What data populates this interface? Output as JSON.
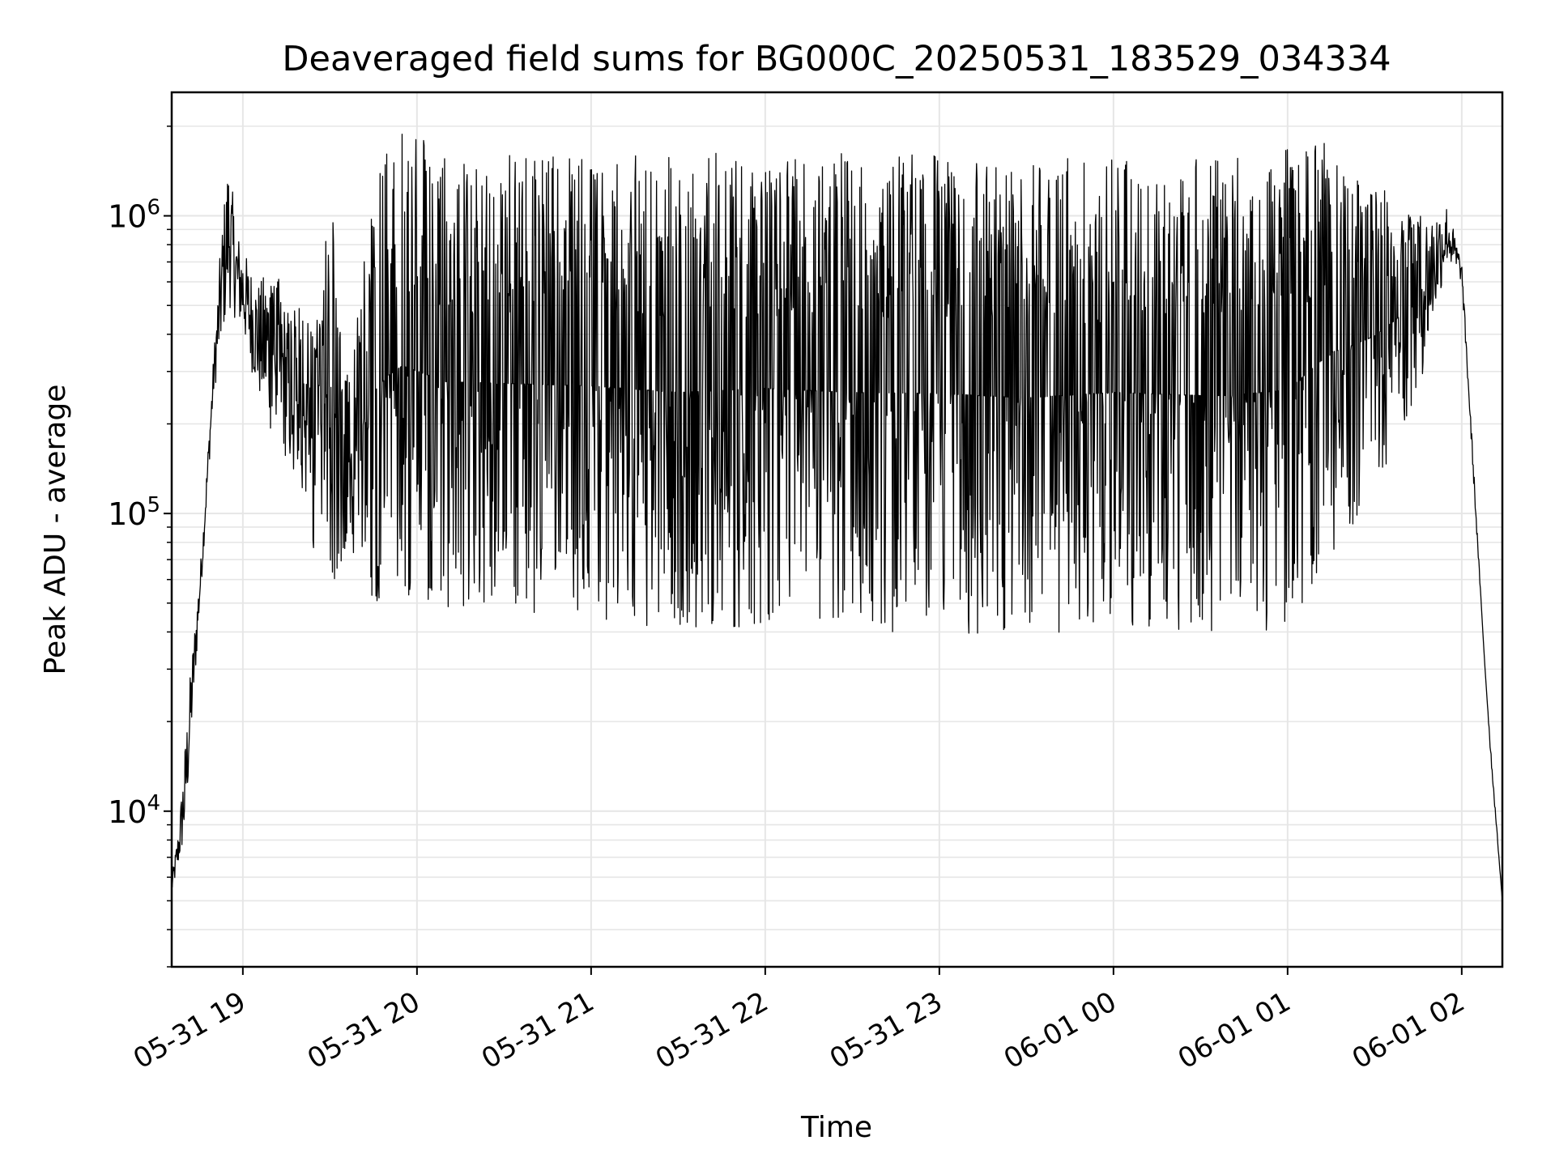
{
  "chart_data": {
    "type": "line",
    "title": "Deaveraged field sums for BG000C_20250531_183529_034334",
    "xlabel": "Time",
    "ylabel": "Peak ADU - average",
    "yscale": "log",
    "ylim": [
      3000,
      2600000
    ],
    "xlim": [
      "2025-05-31 18:35:29",
      "2025-06-01 02:14:00"
    ],
    "grid": true,
    "x_ticks": [
      {
        "time": "2025-05-31 19:00",
        "label": "05-31 19"
      },
      {
        "time": "2025-05-31 20:00",
        "label": "05-31 20"
      },
      {
        "time": "2025-05-31 21:00",
        "label": "05-31 21"
      },
      {
        "time": "2025-05-31 22:00",
        "label": "05-31 22"
      },
      {
        "time": "2025-05-31 23:00",
        "label": "05-31 23"
      },
      {
        "time": "2025-06-01 00:00",
        "label": "06-01 00"
      },
      {
        "time": "2025-06-01 01:00",
        "label": "06-01 01"
      },
      {
        "time": "2025-06-01 02:00",
        "label": "06-01 02"
      }
    ],
    "y_ticks": [
      {
        "value": 10000,
        "base": "10",
        "exp": "4"
      },
      {
        "value": 100000,
        "base": "10",
        "exp": "5"
      },
      {
        "value": 1000000,
        "base": "10",
        "exp": "6"
      }
    ],
    "line_color": "#000000",
    "series": [
      {
        "envelope": {
          "upper": [
            [
              "2025-05-31 18:35",
              5500
            ],
            [
              "2025-05-31 18:38",
              9000
            ],
            [
              "2025-05-31 18:42",
              30000
            ],
            [
              "2025-05-31 18:46",
              80000
            ],
            [
              "2025-05-31 18:50",
              350000
            ],
            [
              "2025-05-31 18:53",
              1000000
            ],
            [
              "2025-05-31 18:55",
              1600000
            ],
            [
              "2025-05-31 18:58",
              900000
            ],
            [
              "2025-05-31 19:02",
              700000
            ],
            [
              "2025-05-31 19:06",
              600000
            ],
            [
              "2025-05-31 19:10",
              750000
            ],
            [
              "2025-05-31 19:15",
              500000
            ],
            [
              "2025-05-31 19:20",
              500000
            ],
            [
              "2025-05-31 19:25",
              400000
            ],
            [
              "2025-05-31 19:30",
              1300000
            ],
            [
              "2025-05-31 19:35",
              300000
            ],
            [
              "2025-05-31 19:40",
              600000
            ],
            [
              "2025-05-31 19:45",
              1300000
            ],
            [
              "2025-05-31 19:50",
              1700000
            ],
            [
              "2025-05-31 19:55",
              2000000
            ],
            [
              "2025-05-31 20:10",
              1600000
            ],
            [
              "2025-05-31 21:00",
              1600000
            ],
            [
              "2025-05-31 22:00",
              1650000
            ],
            [
              "2025-05-31 23:00",
              1600000
            ],
            [
              "2025-06-01 00:00",
              1550000
            ],
            [
              "2025-06-01 00:40",
              1550000
            ],
            [
              "2025-06-01 01:15",
              1800000
            ],
            [
              "2025-06-01 01:30",
              1300000
            ],
            [
              "2025-06-01 01:45",
              1050000
            ],
            [
              "2025-06-01 01:55",
              1100000
            ],
            [
              "2025-06-01 02:00",
              700000
            ],
            [
              "2025-06-01 02:04",
              150000
            ],
            [
              "2025-06-01 02:08",
              30000
            ],
            [
              "2025-06-01 02:12",
              9000
            ],
            [
              "2025-06-01 02:14",
              5000
            ]
          ],
          "lower": [
            [
              "2025-05-31 18:35",
              5000
            ],
            [
              "2025-05-31 18:40",
              8000
            ],
            [
              "2025-05-31 18:45",
              45000
            ],
            [
              "2025-05-31 18:50",
              250000
            ],
            [
              "2025-05-31 18:55",
              500000
            ],
            [
              "2025-05-31 19:00",
              400000
            ],
            [
              "2025-05-31 19:05",
              250000
            ],
            [
              "2025-05-31 19:10",
              180000
            ],
            [
              "2025-05-31 19:15",
              150000
            ],
            [
              "2025-05-31 19:20",
              100000
            ],
            [
              "2025-05-31 19:25",
              70000
            ],
            [
              "2025-05-31 19:30",
              60000
            ],
            [
              "2025-05-31 19:40",
              60000
            ],
            [
              "2025-05-31 19:45",
              50000
            ],
            [
              "2025-05-31 20:10",
              48000
            ],
            [
              "2025-05-31 21:00",
              45000
            ],
            [
              "2025-05-31 21:30",
              40000
            ],
            [
              "2025-05-31 22:00",
              42000
            ],
            [
              "2025-05-31 22:30",
              40000
            ],
            [
              "2025-05-31 23:00",
              40000
            ],
            [
              "2025-05-31 23:30",
              38000
            ],
            [
              "2025-06-01 00:00",
              42000
            ],
            [
              "2025-06-01 00:30",
              40000
            ],
            [
              "2025-06-01 01:00",
              40000
            ],
            [
              "2025-06-01 01:20",
              80000
            ],
            [
              "2025-06-01 01:30",
              120000
            ],
            [
              "2025-06-01 01:45",
              250000
            ],
            [
              "2025-06-01 01:55",
              700000
            ],
            [
              "2025-06-01 02:00",
              600000
            ],
            [
              "2025-06-01 02:05",
              90000
            ],
            [
              "2025-06-01 02:10",
              15000
            ],
            [
              "2025-06-01 02:14",
              5000
            ]
          ]
        }
      }
    ]
  }
}
